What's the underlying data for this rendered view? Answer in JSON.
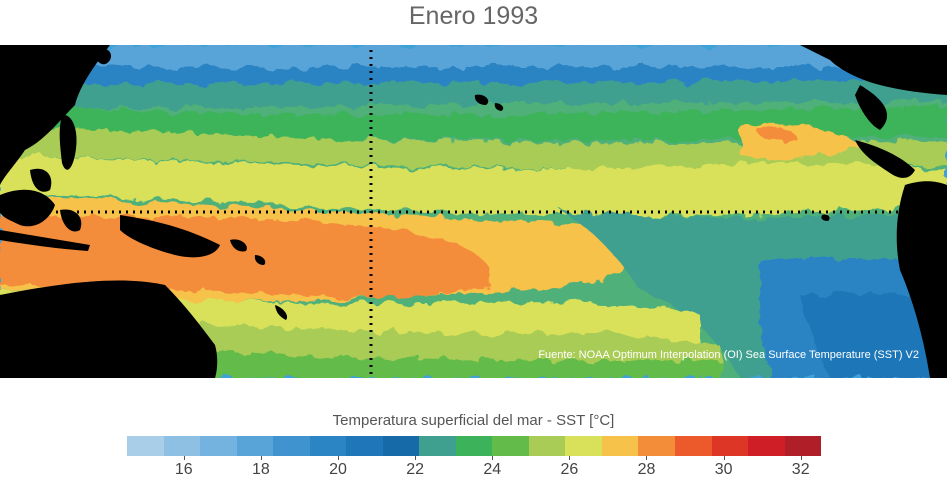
{
  "title": "Enero 1993",
  "source": "Fuente: NOAA Optimum Interpolation (OI) Sea Surface Temperature (SST) V2",
  "colorbar": {
    "label": "Temperatura superficial del mar - SST  [°C]",
    "min": 15,
    "max": 33,
    "step": 1,
    "colors": [
      "#a9cfe8",
      "#8ec0e4",
      "#74b2df",
      "#58a3d8",
      "#3f94d0",
      "#2b84c4",
      "#1f76b8",
      "#176aa8",
      "#3fa08f",
      "#3cb35a",
      "#63bb4a",
      "#a8cc55",
      "#d9e05a",
      "#f7c24a",
      "#f48d3a",
      "#ec5a2c",
      "#dd3526",
      "#cf1e25",
      "#b01e28"
    ],
    "tick_labels": [
      "16",
      "18",
      "20",
      "22",
      "24",
      "26",
      "28",
      "30",
      "32"
    ],
    "tick_values": [
      16,
      18,
      20,
      22,
      24,
      26,
      28,
      30,
      32
    ]
  },
  "map": {
    "dotted_line_color": "#000000",
    "land_color": "#000000"
  }
}
